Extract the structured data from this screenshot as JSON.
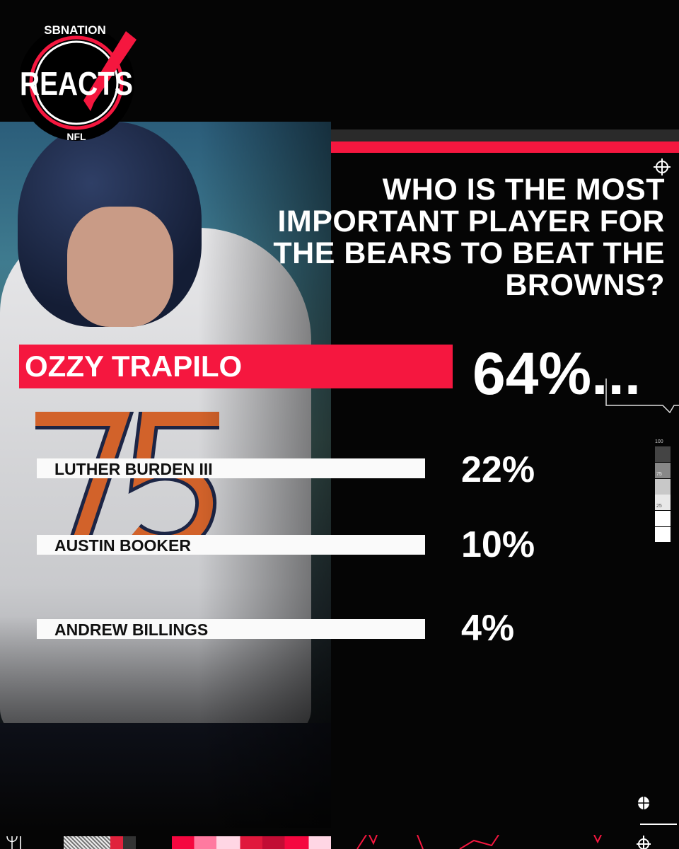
{
  "logo": {
    "top_text": "SBNATION",
    "main_text": "REACTS",
    "bottom_text": "NFL"
  },
  "question": "WHO IS THE MOST IMPORTANT PLAYER FOR THE BEARS TO BEAT THE BROWNS?",
  "colors": {
    "accent": "#f5173f",
    "background": "#050505",
    "bar": "#fafafa"
  },
  "scale_labels": [
    "100",
    "75",
    "25"
  ],
  "chart_data": {
    "type": "bar",
    "title": "WHO IS THE MOST IMPORTANT PLAYER FOR THE BEARS TO BEAT THE BROWNS?",
    "categories": [
      "OZZY TRAPILO",
      "LUTHER BURDEN III",
      "AUSTIN BOOKER",
      "ANDREW BILLINGS"
    ],
    "values": [
      64,
      22,
      10,
      4
    ],
    "labels": [
      "64%...",
      "22%",
      "10%",
      "4%"
    ],
    "unit": "%",
    "highlight": "OZZY TRAPILO"
  }
}
